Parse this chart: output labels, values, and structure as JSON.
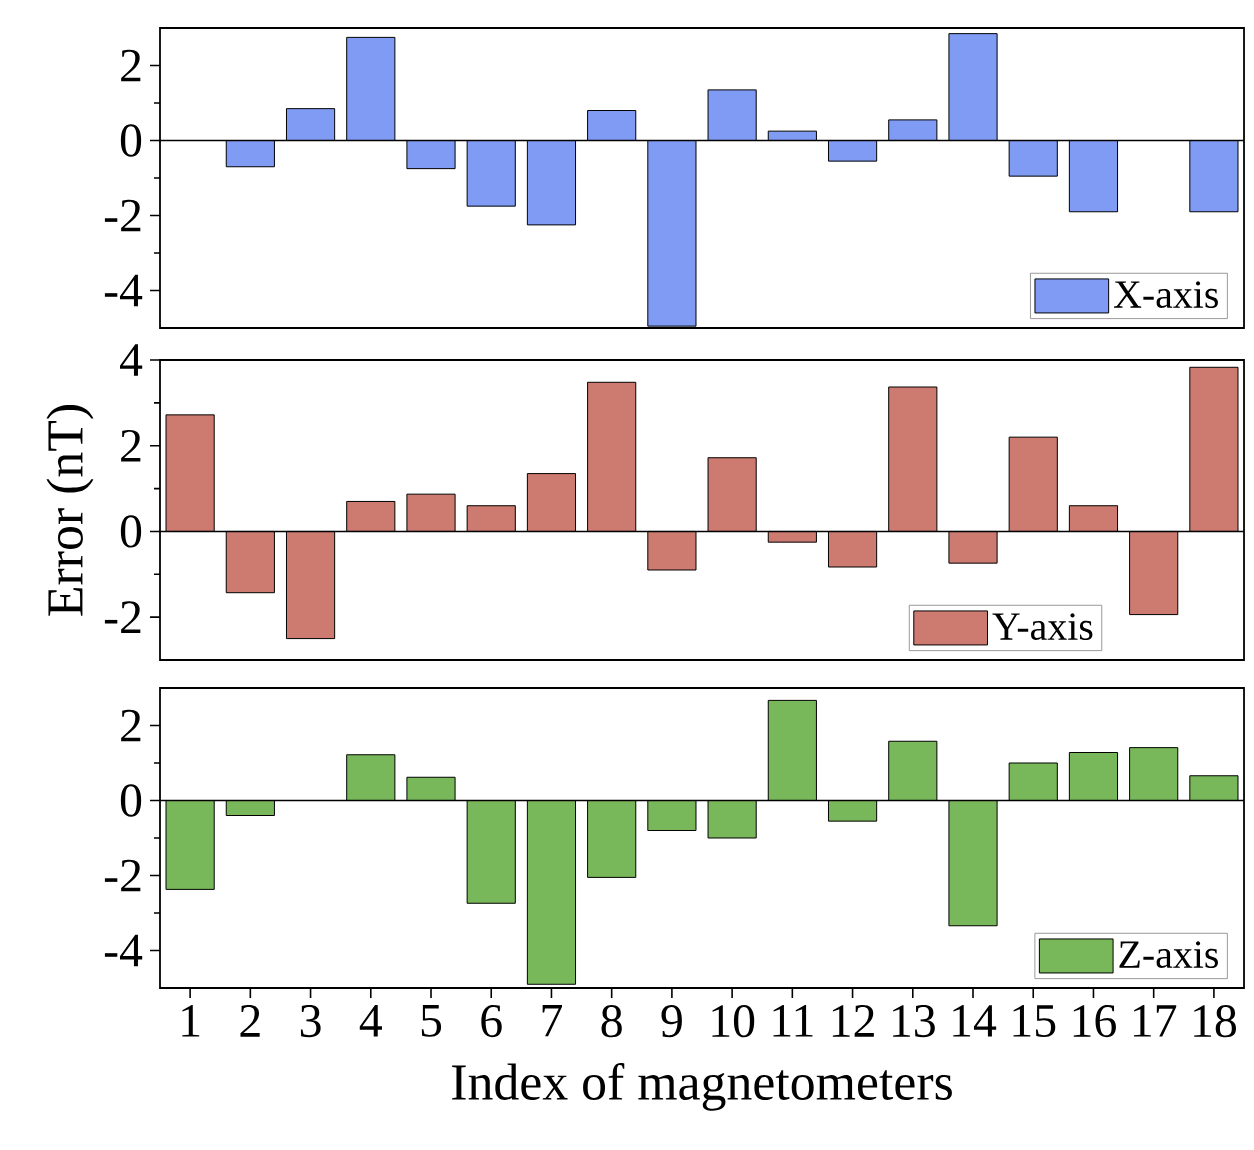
{
  "chart_data": [
    {
      "type": "bar",
      "categories": [
        "1",
        "2",
        "3",
        "4",
        "5",
        "6",
        "7",
        "8",
        "9",
        "10",
        "11",
        "12",
        "13",
        "14",
        "15",
        "16",
        "17",
        "18"
      ],
      "series": [
        {
          "name": "X-axis",
          "color": "#7f9bf4",
          "values": [
            null,
            -0.7,
            0.85,
            2.75,
            -0.75,
            -1.75,
            -2.25,
            0.8,
            -4.95,
            1.35,
            0.25,
            -0.55,
            0.55,
            2.85,
            -0.95,
            -1.9,
            null,
            -1.9
          ]
        }
      ],
      "ylim": [
        -5,
        3
      ],
      "yticks": [
        -4,
        -2,
        0,
        2
      ],
      "legend": "bottom right",
      "tick_labels": "y",
      "ref_lines": [
        {
          "axis": "y",
          "value": 0
        }
      ]
    },
    {
      "type": "bar",
      "categories": [
        "1",
        "2",
        "3",
        "4",
        "5",
        "6",
        "7",
        "8",
        "9",
        "10",
        "11",
        "12",
        "13",
        "14",
        "15",
        "16",
        "17",
        "18"
      ],
      "series": [
        {
          "name": "Y-axis",
          "color": "#cd7b70",
          "values": [
            2.72,
            -1.43,
            -2.5,
            0.7,
            0.87,
            0.6,
            1.35,
            3.48,
            -0.9,
            1.72,
            -0.25,
            -0.83,
            3.37,
            -0.74,
            2.2,
            0.6,
            -1.94,
            3.83
          ]
        }
      ],
      "ylabel": "Error (nT)",
      "ylim": [
        -3,
        4
      ],
      "yticks": [
        -2,
        0,
        2,
        4
      ],
      "legend": "bottom",
      "tick_labels": "y",
      "ref_lines": [
        {
          "axis": "y",
          "value": 0
        }
      ]
    },
    {
      "type": "bar",
      "categories": [
        "1",
        "2",
        "3",
        "4",
        "5",
        "6",
        "7",
        "8",
        "9",
        "10",
        "11",
        "12",
        "13",
        "14",
        "15",
        "16",
        "17",
        "18"
      ],
      "series": [
        {
          "name": "Z-axis",
          "color": "#79b85a",
          "values": [
            -2.37,
            -0.4,
            null,
            1.22,
            0.62,
            -2.74,
            -4.9,
            -2.05,
            -0.8,
            -1.0,
            2.67,
            -0.55,
            1.58,
            -3.34,
            1.0,
            1.28,
            1.41,
            0.66
          ]
        }
      ],
      "xlabel": "Index of magnetometers",
      "ylim": [
        -5,
        3
      ],
      "yticks": [
        -4,
        -2,
        0,
        2
      ],
      "legend": "bottom right",
      "ref_lines": [
        {
          "axis": "y",
          "value": 0
        }
      ]
    }
  ]
}
